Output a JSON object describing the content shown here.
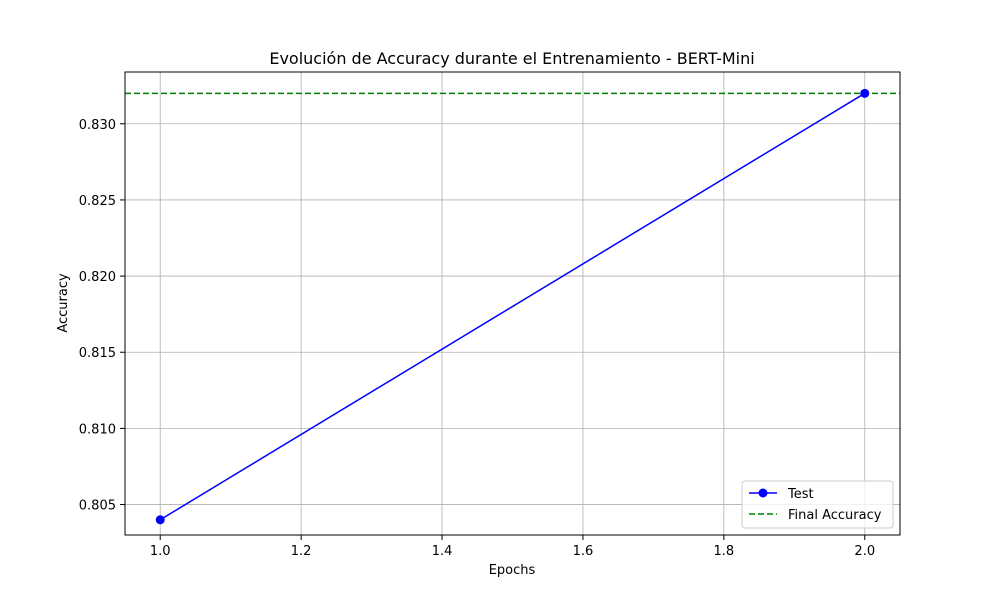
{
  "chart_data": {
    "type": "line",
    "title": "Evolución de Accuracy durante el Entrenamiento - BERT-Mini",
    "xlabel": "Epochs",
    "ylabel": "Accuracy",
    "xlim": [
      0.95,
      2.05
    ],
    "ylim": [
      0.803,
      0.8334
    ],
    "x_ticks": [
      1.0,
      1.2,
      1.4,
      1.6,
      1.8,
      2.0
    ],
    "x_tick_labels": [
      "1.0",
      "1.2",
      "1.4",
      "1.6",
      "1.8",
      "2.0"
    ],
    "y_ticks": [
      0.805,
      0.81,
      0.815,
      0.82,
      0.825,
      0.83
    ],
    "y_tick_labels": [
      "0.805",
      "0.810",
      "0.815",
      "0.820",
      "0.825",
      "0.830"
    ],
    "grid": true,
    "legend_position": "bottom-right",
    "series": [
      {
        "name": "Test",
        "x": [
          1.0,
          2.0
        ],
        "y": [
          0.804,
          0.832
        ],
        "color": "#0000ff",
        "marker": "circle",
        "line_style": "solid"
      }
    ],
    "reference_lines": [
      {
        "name": "Final Accuracy",
        "orientation": "horizontal",
        "y": 0.832,
        "color": "#008000",
        "line_style": "dashed"
      }
    ]
  }
}
